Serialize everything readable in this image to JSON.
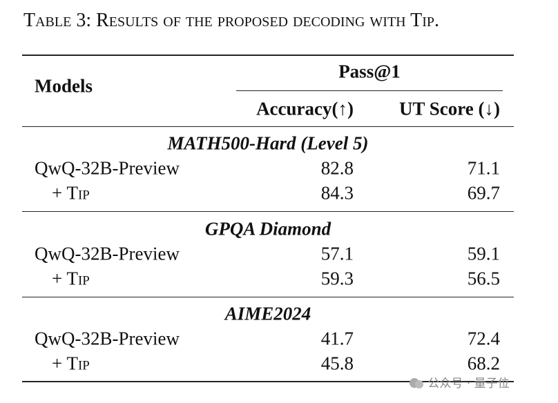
{
  "caption": "Table 3: Results of the proposed decoding with Tip.",
  "header": {
    "models": "Models",
    "group": "Pass@1",
    "columns": [
      "Accuracy(↑)",
      "UT Score (↓)"
    ]
  },
  "sections": [
    {
      "title": "MATH500-Hard (Level 5)",
      "rows": [
        [
          "QwQ-32B-Preview",
          82.8,
          71.1
        ],
        [
          "+ Tip",
          84.3,
          69.7
        ]
      ]
    },
    {
      "title": "GPQA Diamond",
      "rows": [
        [
          "QwQ-32B-Preview",
          57.1,
          59.1
        ],
        [
          "+ Tip",
          59.3,
          56.5
        ]
      ]
    },
    {
      "title": "AIME2024",
      "rows": [
        [
          "QwQ-32B-Preview",
          41.7,
          72.4
        ],
        [
          "+ Tip",
          45.8,
          68.2
        ]
      ]
    }
  ],
  "watermark": "公众号 · 量子位"
}
